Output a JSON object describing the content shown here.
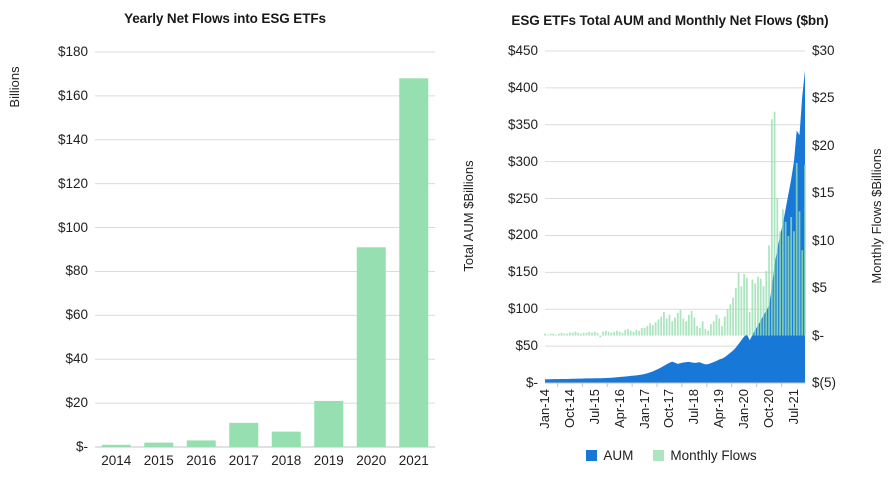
{
  "page_background": "#ffffff",
  "colors": {
    "grid": "#dcdcdc",
    "axis": "#c3c3c3",
    "text": "#1f1f1f",
    "green": "#95dfb0",
    "blue": "#1878d8"
  },
  "chart_data": [
    {
      "type": "bar",
      "title": "Yearly Net Flows into ESG ETFs",
      "y_axis_label": "Billions",
      "categories": [
        "2014",
        "2015",
        "2016",
        "2017",
        "2018",
        "2019",
        "2020",
        "2021"
      ],
      "values": [
        1,
        2,
        3,
        11,
        7,
        21,
        91,
        168
      ],
      "bar_color": "#95dfb0",
      "ylim": [
        0,
        180
      ],
      "grid": true,
      "y_ticks": [
        {
          "label": "$180",
          "value": 180
        },
        {
          "label": "$160",
          "value": 160
        },
        {
          "label": "$140",
          "value": 140
        },
        {
          "label": "$120",
          "value": 120
        },
        {
          "label": "$100",
          "value": 100
        },
        {
          "label": "$80",
          "value": 80
        },
        {
          "label": "$60",
          "value": 60
        },
        {
          "label": "$40",
          "value": 40
        },
        {
          "label": "$20",
          "value": 20
        },
        {
          "label": "$-",
          "value": 0
        }
      ]
    },
    {
      "type": "combo",
      "title": "ESG ETFs Total AUM and Monthly Net Flows ($bn)",
      "left_axis_label": "Total AUM $Billions",
      "right_axis_label": "Monthly Flows $Billions",
      "left_ylim": [
        0,
        450
      ],
      "right_ylim": [
        -5,
        30
      ],
      "grid": true,
      "legend_position": "bottom",
      "left_y_ticks": [
        {
          "label": "$450",
          "value": 450
        },
        {
          "label": "$400",
          "value": 400
        },
        {
          "label": "$350",
          "value": 350
        },
        {
          "label": "$300",
          "value": 300
        },
        {
          "label": "$250",
          "value": 250
        },
        {
          "label": "$200",
          "value": 200
        },
        {
          "label": "$150",
          "value": 150
        },
        {
          "label": "$100",
          "value": 100
        },
        {
          "label": "$50",
          "value": 50
        },
        {
          "label": "$-",
          "value": 0
        }
      ],
      "right_y_ticks": [
        {
          "label": "$30",
          "value": 30
        },
        {
          "label": "$25",
          "value": 25
        },
        {
          "label": "$20",
          "value": 20
        },
        {
          "label": "$15",
          "value": 15
        },
        {
          "label": "$10",
          "value": 10
        },
        {
          "label": "$5",
          "value": 5
        },
        {
          "label": "$-",
          "value": 0
        },
        {
          "label": "$(5)",
          "value": -5
        }
      ],
      "x_tick_labels": [
        {
          "label": "Jan-14",
          "index": 0
        },
        {
          "label": "Oct-14",
          "index": 9
        },
        {
          "label": "Jul-15",
          "index": 18
        },
        {
          "label": "Apr-16",
          "index": 27
        },
        {
          "label": "Jan-17",
          "index": 36
        },
        {
          "label": "Oct-17",
          "index": 45
        },
        {
          "label": "Jul-18",
          "index": 54
        },
        {
          "label": "Apr-19",
          "index": 63
        },
        {
          "label": "Jan-20",
          "index": 72
        },
        {
          "label": "Oct-20",
          "index": 81
        },
        {
          "label": "Jul-21",
          "index": 90
        }
      ],
      "series": [
        {
          "name": "AUM",
          "type": "area",
          "axis": "left",
          "color": "#1878d8",
          "values": [
            5.0,
            5.1,
            5.1,
            5.2,
            5.2,
            5.3,
            5.4,
            5.4,
            5.5,
            5.6,
            5.7,
            5.8,
            5.9,
            6.0,
            6.1,
            6.2,
            6.2,
            6.3,
            6.4,
            6.4,
            6.5,
            6.6,
            6.8,
            7.0,
            7.2,
            7.5,
            7.8,
            8.1,
            8.4,
            8.8,
            9.2,
            9.6,
            10.0,
            10.4,
            10.8,
            11.4,
            12.2,
            13.2,
            14.4,
            15.8,
            17.4,
            19.2,
            21.2,
            23.2,
            25.5,
            27.5,
            29.0,
            27.5,
            26.0,
            27.0,
            27.8,
            28.3,
            28.6,
            28.0,
            27.2,
            27.6,
            28.2,
            26.5,
            25.2,
            25.6,
            27.0,
            28.5,
            30.0,
            31.8,
            33.0,
            35.0,
            38.0,
            41.0,
            44.0,
            48.0,
            53.0,
            58.0,
            63,
            66,
            58,
            65,
            72,
            78,
            85,
            92,
            98,
            105,
            130,
            160,
            182,
            200,
            216,
            236,
            256,
            276,
            300,
            342,
            336,
            388,
            424
          ]
        },
        {
          "name": "Monthly Flows",
          "type": "bar",
          "axis": "right",
          "color": "#95dfb0",
          "opacity": 0.78,
          "values": [
            0.2,
            0.1,
            0.2,
            0.2,
            0.1,
            0.2,
            0.3,
            0.2,
            0.2,
            0.3,
            0.3,
            0.4,
            0.3,
            0.2,
            0.3,
            0.3,
            0.4,
            0.3,
            0.4,
            0.3,
            -0.2,
            0.4,
            0.5,
            0.4,
            0.3,
            0.4,
            0.5,
            0.4,
            0.3,
            0.6,
            0.7,
            0.5,
            0.4,
            0.6,
            0.5,
            0.8,
            0.8,
            1.0,
            1.3,
            1.1,
            1.4,
            1.7,
            2.0,
            2.5,
            1.8,
            2.2,
            1.5,
            1.9,
            2.4,
            2.7,
            1.8,
            1.5,
            2.2,
            2.6,
            1.9,
            1.0,
            0.8,
            1.5,
            0.7,
            0.5,
            1.2,
            1.5,
            2.2,
            1.8,
            1.0,
            2.0,
            2.8,
            3.3,
            4.0,
            5.0,
            6.6,
            5.2,
            6.5,
            6.1,
            2.5,
            5.9,
            5.5,
            6.2,
            6.0,
            5.2,
            6.8,
            9.5,
            22.8,
            23.6,
            14.5,
            11.0,
            13.3,
            12.0,
            10.5,
            12.5,
            11.0,
            18.2,
            13.1,
            9.0,
            18.0
          ]
        }
      ]
    }
  ]
}
